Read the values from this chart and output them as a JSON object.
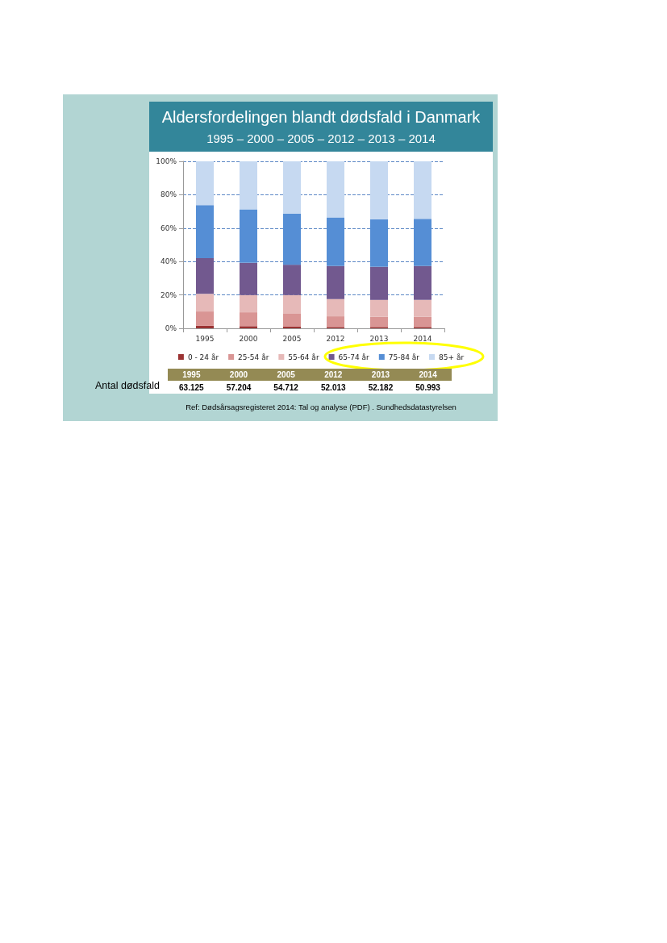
{
  "chart_data": {
    "type": "bar",
    "title": "Aldersfordelingen blandt dødsfald i Danmark",
    "subtitle": "1995 – 2000 – 2005 – 2012 – 2013 – 2014",
    "categories": [
      "1995",
      "2000",
      "2005",
      "2012",
      "2013",
      "2014"
    ],
    "stacked": true,
    "series": [
      {
        "name": "0 - 24 år",
        "color": "#9b3333",
        "values": [
          1.5,
          1.3,
          1.0,
          0.8,
          0.8,
          0.8
        ]
      },
      {
        "name": "25-54 år",
        "color": "#d99594",
        "values": [
          8.6,
          8.3,
          7.7,
          6.4,
          6.1,
          6.1
        ]
      },
      {
        "name": "55-64 år",
        "color": "#e6b9b8",
        "values": [
          10.5,
          10.3,
          11.2,
          10.3,
          10.1,
          10.1
        ]
      },
      {
        "name": "65-74 år",
        "color": "#72598f",
        "values": [
          21.4,
          19.3,
          18.2,
          19.8,
          19.8,
          20.3
        ]
      },
      {
        "name": "75-84 år",
        "color": "#558ed5",
        "values": [
          31.8,
          32.0,
          30.5,
          29.1,
          28.5,
          28.3
        ]
      },
      {
        "name": "85+ år",
        "color": "#c6d9f1",
        "values": [
          26.2,
          28.8,
          31.4,
          33.6,
          34.7,
          34.4
        ]
      }
    ],
    "ylim": [
      0,
      100
    ],
    "yticks": [
      {
        "value": 0,
        "label": "0%"
      },
      {
        "value": 20,
        "label": "20%"
      },
      {
        "value": 40,
        "label": "40%"
      },
      {
        "value": 60,
        "label": "60%"
      },
      {
        "value": 80,
        "label": "80%"
      },
      {
        "value": 100,
        "label": "100%"
      }
    ],
    "grid": "y",
    "legend": "bottom",
    "annotations": [
      "Antal dødsfald",
      "63.125",
      "57.204",
      "54.712",
      "52.013",
      "52.182",
      "50.993",
      "Ref: Dødsårsagsregisteret 2014: Tal og analyse (PDF) . Sundhedsdatastyrelsen"
    ]
  }
}
